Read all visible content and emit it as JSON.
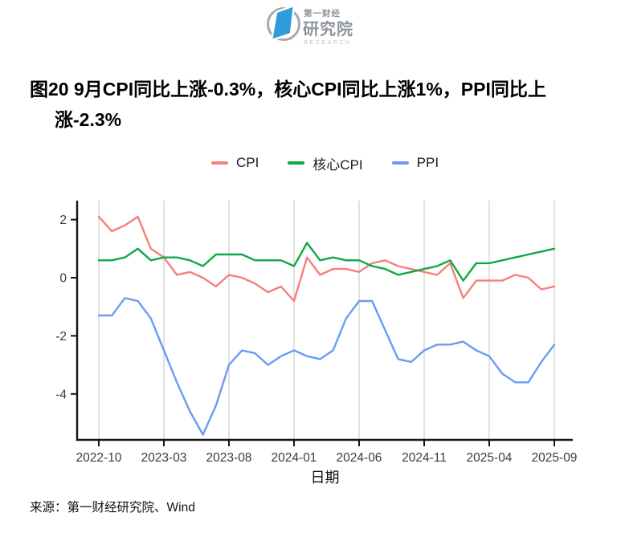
{
  "header": {
    "logo": {
      "brand_line1": "第一财经",
      "brand_line2": "研究院",
      "brand_line3": "RESEARCH",
      "brand_blue": "#2E9CD8",
      "brand_gray": "#8E949B",
      "brand_light_gray": "#BDC2C8"
    }
  },
  "title": {
    "line1": "图20 9月CPI同比上涨-0.3%，核心CPI同比上涨1%，PPI同比上",
    "line2": "涨-2.3%"
  },
  "chart_data": {
    "type": "line",
    "title": "",
    "xlabel": "日期",
    "ylabel": "",
    "x": [
      "2022-10",
      "2022-11",
      "2022-12",
      "2023-01",
      "2023-02",
      "2023-03",
      "2023-04",
      "2023-05",
      "2023-06",
      "2023-07",
      "2023-08",
      "2023-09",
      "2023-10",
      "2023-11",
      "2023-12",
      "2024-01",
      "2024-02",
      "2024-03",
      "2024-04",
      "2024-05",
      "2024-06",
      "2024-07",
      "2024-08",
      "2024-09",
      "2024-10",
      "2024-11",
      "2024-12",
      "2025-01",
      "2025-02",
      "2025-03",
      "2025-04",
      "2025-05",
      "2025-06",
      "2025-07",
      "2025-08",
      "2025-09"
    ],
    "series": [
      {
        "name": "CPI",
        "color": "#F5807A",
        "values": [
          2.1,
          1.6,
          1.8,
          2.1,
          1.0,
          0.7,
          0.1,
          0.2,
          0.0,
          -0.3,
          0.1,
          0.0,
          -0.2,
          -0.5,
          -0.3,
          -0.8,
          0.7,
          0.1,
          0.3,
          0.3,
          0.2,
          0.5,
          0.6,
          0.4,
          0.3,
          0.2,
          0.1,
          0.5,
          -0.7,
          -0.1,
          -0.1,
          -0.1,
          0.1,
          0.0,
          -0.4,
          -0.3
        ]
      },
      {
        "name": "核心CPI",
        "color": "#0EA946",
        "values": [
          0.6,
          0.6,
          0.7,
          1.0,
          0.6,
          0.7,
          0.7,
          0.6,
          0.4,
          0.8,
          0.8,
          0.8,
          0.6,
          0.6,
          0.6,
          0.4,
          1.2,
          0.6,
          0.7,
          0.6,
          0.6,
          0.4,
          0.3,
          0.1,
          0.2,
          0.3,
          0.4,
          0.6,
          -0.1,
          0.5,
          0.5,
          0.6,
          0.7,
          0.8,
          0.9,
          1.0
        ]
      },
      {
        "name": "PPI",
        "color": "#6B9BF2",
        "values": [
          -1.3,
          -1.3,
          -0.7,
          -0.8,
          -1.4,
          -2.5,
          -3.6,
          -4.6,
          -5.4,
          -4.4,
          -3.0,
          -2.5,
          -2.6,
          -3.0,
          -2.7,
          -2.5,
          -2.7,
          -2.8,
          -2.5,
          -1.4,
          -0.8,
          -0.8,
          -1.8,
          -2.8,
          -2.9,
          -2.5,
          -2.3,
          -2.3,
          -2.2,
          -2.5,
          -2.7,
          -3.3,
          -3.6,
          -3.6,
          -2.9,
          -2.3
        ]
      }
    ],
    "x_tick_labels": [
      "2022-10",
      "2023-03",
      "2023-08",
      "2024-01",
      "2024-06",
      "2024-11",
      "2025-04",
      "2025-09"
    ],
    "y_ticks": [
      2,
      0,
      -2,
      -4
    ],
    "ylim": [
      -5.6,
      2.65
    ],
    "grid": "vertical-only",
    "legend_position": "top-center",
    "axis_color": "#141414",
    "gridline_color": "#D4D4D4"
  },
  "source": {
    "text": "来源：第一财经研究院、Wind"
  }
}
